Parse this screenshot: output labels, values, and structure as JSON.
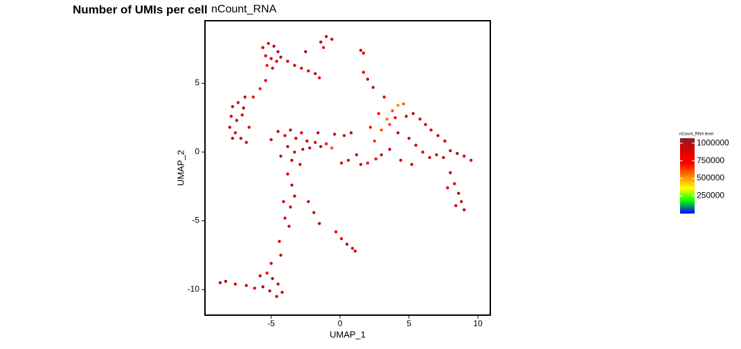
{
  "chart_data": {
    "type": "scatter",
    "title": "Number of UMIs per cell",
    "subtitle": "nCount_RNA",
    "x_label": "UMAP_1",
    "y_label": "UMAP_2",
    "xlim": [
      -9.8,
      10.9
    ],
    "ylim": [
      -11.86,
      9.55
    ],
    "xticks": [
      -5,
      0,
      5,
      10
    ],
    "yticks": [
      -10,
      -5,
      0,
      5
    ],
    "legend_title": "nCount_RNA level",
    "color_range": [
      0,
      1070000
    ],
    "color_ticks": [
      {
        "value": 250000,
        "label": "250000"
      },
      {
        "value": 500000,
        "label": "500000"
      },
      {
        "value": 750000,
        "label": "750000"
      },
      {
        "value": 1000000,
        "label": "1000000"
      }
    ],
    "colorscale": [
      "#0000ff",
      "#00ff00",
      "#ffff00",
      "#ff8000",
      "#ff0000",
      "#e00000",
      "#8b2020"
    ],
    "x": [
      -5.6,
      -5.2,
      -4.8,
      -4.5,
      -5.4,
      -5.0,
      -4.6,
      -5.3,
      -4.9,
      -4.3,
      -3.8,
      -3.3,
      -2.8,
      -2.3,
      -1.8,
      -1.5,
      -1.4,
      -1.0,
      -0.6,
      -1.2,
      -2.5,
      1.5,
      1.7,
      -7.8,
      -7.4,
      -7.0,
      -7.9,
      -7.5,
      -7.1,
      -8.0,
      -7.6,
      -7.2,
      -6.8,
      -7.8,
      -6.6,
      -6.3,
      -5.8,
      -5.4,
      -6.9,
      -4.5,
      -4.0,
      -3.6,
      -3.2,
      -2.8,
      -2.4,
      -3.8,
      -3.3,
      -2.7,
      -2.2,
      -1.8,
      -1.4,
      -1.0,
      -0.6,
      -3.5,
      -2.9,
      -4.3,
      -1.6,
      -0.4,
      0.3,
      0.8,
      0.1,
      -5.0,
      1.5,
      2.0,
      2.6,
      3.0,
      2.5,
      3.0,
      3.4,
      3.8,
      4.2,
      4.6,
      3.6,
      2.8,
      4.0,
      4.8,
      5.3,
      5.8,
      6.2,
      6.6,
      7.1,
      7.6,
      4.2,
      5.0,
      5.5,
      6.0,
      6.5,
      7.0,
      7.5,
      8.0,
      8.5,
      9.0,
      9.5,
      3.6,
      4.4,
      5.2,
      2.2,
      3.2,
      2.4,
      2.0,
      1.7,
      8.0,
      8.3,
      8.6,
      8.8,
      8.4,
      9.0,
      7.8,
      -3.8,
      -3.5,
      -3.3,
      -3.6,
      -4.0,
      -3.7,
      -4.1,
      -4.4,
      -4.3,
      -5.8,
      -5.3,
      -4.9,
      -4.5,
      -5.6,
      -5.1,
      -4.6,
      -4.2,
      -6.2,
      -6.8,
      -7.6,
      -8.3,
      -8.7,
      -5.0,
      -0.3,
      0.1,
      0.5,
      0.9,
      1.1,
      -1.5,
      -1.9,
      -2.3,
      0.6,
      1.2
    ],
    "y": [
      7.6,
      7.9,
      7.7,
      7.3,
      7.0,
      6.8,
      6.6,
      6.3,
      6.1,
      6.9,
      6.6,
      6.3,
      6.1,
      5.9,
      5.7,
      5.4,
      8.0,
      8.4,
      8.2,
      7.6,
      7.3,
      7.4,
      7.2,
      3.3,
      3.6,
      3.2,
      2.6,
      2.3,
      2.7,
      1.8,
      1.4,
      1.0,
      0.7,
      1.0,
      1.8,
      4.0,
      4.6,
      5.2,
      4.0,
      1.5,
      1.2,
      1.6,
      1.0,
      1.4,
      0.8,
      0.4,
      0.0,
      0.2,
      0.3,
      0.7,
      0.4,
      0.6,
      0.3,
      -0.6,
      -0.9,
      -0.3,
      1.4,
      1.3,
      1.2,
      1.4,
      -0.8,
      0.9,
      -0.9,
      -0.8,
      -0.5,
      -0.2,
      0.8,
      1.6,
      2.4,
      3.0,
      3.4,
      3.5,
      2.0,
      2.8,
      2.5,
      2.6,
      2.8,
      2.4,
      2.0,
      1.6,
      1.2,
      0.8,
      1.4,
      1.0,
      0.5,
      0.0,
      -0.4,
      -0.2,
      -0.4,
      0.1,
      -0.1,
      -0.3,
      -0.6,
      0.2,
      -0.6,
      -0.9,
      1.8,
      4.0,
      4.7,
      5.3,
      5.8,
      -1.5,
      -2.3,
      -3.0,
      -3.6,
      -3.9,
      -4.2,
      -2.6,
      -1.6,
      -2.4,
      -3.2,
      -4.0,
      -4.8,
      -5.4,
      -3.6,
      -6.5,
      -7.5,
      -9.0,
      -8.8,
      -9.2,
      -9.6,
      -9.8,
      -10.1,
      -10.5,
      -10.2,
      -9.9,
      -9.7,
      -9.6,
      -9.4,
      -9.5,
      -8.1,
      -5.8,
      -6.3,
      -6.7,
      -7.0,
      -7.2,
      -5.2,
      -4.4,
      -3.6,
      -0.6,
      -0.2
    ],
    "values": [
      950000,
      900000,
      980000,
      920000,
      880000,
      960000,
      850000,
      700000,
      930000,
      990000,
      900000,
      950000,
      870000,
      920000,
      980000,
      900000,
      950000,
      880000,
      910000,
      700000,
      960000,
      930000,
      890000,
      950000,
      920000,
      990000,
      880000,
      960000,
      900000,
      940000,
      870000,
      980000,
      910000,
      930000,
      900000,
      750000,
      680000,
      900000,
      950000,
      950000,
      900000,
      980000,
      920000,
      870000,
      960000,
      930000,
      890000,
      990000,
      910000,
      880000,
      950000,
      700000,
      600000,
      940000,
      900000,
      970000,
      920000,
      880000,
      930000,
      960000,
      900000,
      850000,
      900000,
      700000,
      750000,
      950000,
      650000,
      600000,
      550000,
      600000,
      520000,
      580000,
      620000,
      700000,
      750000,
      900000,
      950000,
      920000,
      980000,
      900000,
      950000,
      930000,
      960000,
      900000,
      980000,
      910000,
      940000,
      880000,
      960000,
      920000,
      990000,
      900000,
      950000,
      900000,
      930000,
      970000,
      700000,
      880000,
      920000,
      950000,
      900000,
      950000,
      920000,
      980000,
      900000,
      940000,
      960000,
      890000,
      930000,
      900000,
      970000,
      920000,
      880000,
      950000,
      900000,
      910000,
      940000,
      930000,
      700000,
      950000,
      900000,
      980000,
      920000,
      960000,
      890000,
      910000,
      950000,
      900000,
      960000,
      920000,
      940000,
      880000,
      900000,
      950000,
      920000,
      900000,
      930000,
      900000,
      950000,
      880000,
      900000
    ]
  }
}
